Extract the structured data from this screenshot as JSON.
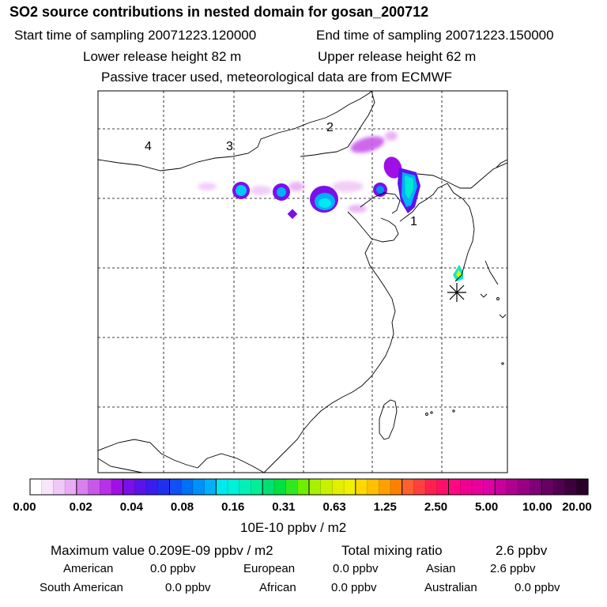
{
  "header": {
    "title": "SO2 source contributions in nested domain for gosan_200712",
    "start_time": "Start time of sampling 20071223.120000",
    "end_time": "End time of sampling 20071223.150000",
    "lower_release": "Lower release height   82 m",
    "upper_release": "Upper release height   62 m",
    "tracer_note": "Passive tracer used, meteorological data are from ECMWF"
  },
  "map": {
    "region_labels": [
      "1",
      "2",
      "3",
      "4"
    ],
    "receptor_marker": "asterisk-icon",
    "colors": {
      "coastline": "#000000",
      "grid": "#000000"
    }
  },
  "colorbar": {
    "tick_labels": [
      "0.00",
      "0.02",
      "0.04",
      "0.08",
      "0.16",
      "0.31",
      "0.63",
      "1.25",
      "2.50",
      "5.00",
      "10.00",
      "20.00"
    ],
    "units": "10E-10 ppbv / m2",
    "colors": [
      "#ffffff",
      "#f8e4fb",
      "#f0c8f8",
      "#e8acf4",
      "#d880ee",
      "#c858ea",
      "#b830e8",
      "#a010e6",
      "#7a10e8",
      "#5a14ea",
      "#3a1cee",
      "#2030f0",
      "#1050f4",
      "#0070f6",
      "#0090f8",
      "#00b0fa",
      "#00e8f0",
      "#00f0d8",
      "#00f0b8",
      "#00ee98",
      "#00e070",
      "#00e040",
      "#30e820",
      "#70ee00",
      "#a8f000",
      "#c8f000",
      "#e0f000",
      "#f0f000",
      "#ffd800",
      "#ffc000",
      "#ffa000",
      "#ff8000",
      "#ff6030",
      "#ff4040",
      "#ff2050",
      "#ff1068",
      "#ff0880",
      "#f00090",
      "#e8009a",
      "#e000a8",
      "#c8009c",
      "#b00090",
      "#980084",
      "#800078",
      "#680064",
      "#500050",
      "#3c003c",
      "#280028"
    ]
  },
  "footer": {
    "max_value": "Maximum value  0.209E-09 ppbv / m2",
    "total_mixing_label": "Total mixing ratio",
    "total_mixing_value": "2.6 ppbv",
    "sources": [
      {
        "name": "American",
        "value": "0.0 ppbv"
      },
      {
        "name": "European",
        "value": "0.0 ppbv"
      },
      {
        "name": "Asian",
        "value": "2.6 ppbv"
      },
      {
        "name": "South American",
        "value": "0.0 ppbv"
      },
      {
        "name": "African",
        "value": "0.0 ppbv"
      },
      {
        "name": "Australian",
        "value": "0.0 ppbv"
      }
    ]
  }
}
